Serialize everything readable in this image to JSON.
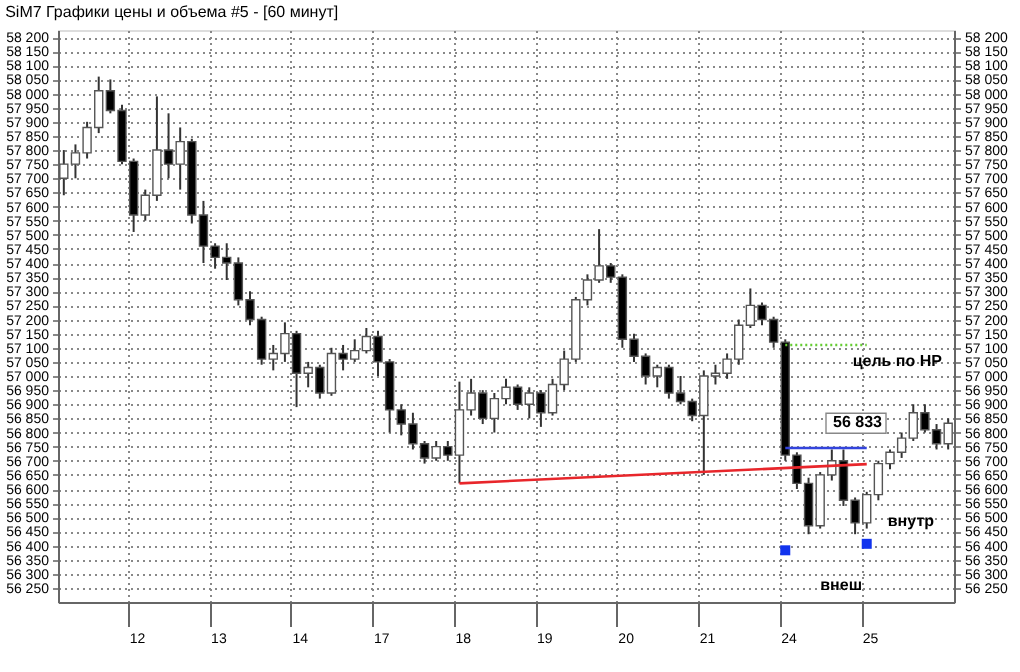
{
  "chart_data": {
    "type": "candlestick",
    "title": "SiM7 Графики цены и объема #5 - [60 минут]",
    "categories": [
      null,
      null,
      null,
      null,
      null,
      null,
      "12",
      null,
      null,
      null,
      null,
      null,
      null,
      "13",
      null,
      null,
      null,
      null,
      null,
      null,
      "14",
      null,
      null,
      null,
      null,
      null,
      null,
      "17",
      null,
      null,
      null,
      null,
      null,
      null,
      "18",
      null,
      null,
      null,
      null,
      null,
      null,
      "19",
      null,
      null,
      null,
      null,
      null,
      null,
      "20",
      null,
      null,
      null,
      null,
      null,
      null,
      "21",
      null,
      null,
      null,
      null,
      null,
      null,
      "24",
      null,
      null,
      null,
      null,
      null,
      null,
      "25",
      null,
      null,
      null,
      null,
      null,
      null,
      null
    ],
    "ohlc": [
      [
        57700,
        57800,
        57640,
        57750
      ],
      [
        57750,
        57820,
        57700,
        57790
      ],
      [
        57790,
        57900,
        57770,
        57880
      ],
      [
        57880,
        58060,
        57860,
        58010
      ],
      [
        58010,
        58050,
        57930,
        57940
      ],
      [
        57940,
        57960,
        57750,
        57760
      ],
      [
        57760,
        57770,
        57510,
        57570
      ],
      [
        57570,
        57660,
        57550,
        57640
      ],
      [
        57640,
        57990,
        57620,
        57800
      ],
      [
        57800,
        57930,
        57700,
        57750
      ],
      [
        57750,
        57880,
        57660,
        57830
      ],
      [
        57830,
        57840,
        57540,
        57570
      ],
      [
        57570,
        57620,
        57400,
        57460
      ],
      [
        57460,
        57470,
        57380,
        57420
      ],
      [
        57420,
        57470,
        57340,
        57400
      ],
      [
        57400,
        57420,
        57250,
        57270
      ],
      [
        57270,
        57300,
        57180,
        57200
      ],
      [
        57200,
        57210,
        57040,
        57060
      ],
      [
        57060,
        57110,
        57020,
        57080
      ],
      [
        57080,
        57190,
        57050,
        57150
      ],
      [
        57150,
        57160,
        56890,
        57010
      ],
      [
        57010,
        57050,
        56960,
        57030
      ],
      [
        57030,
        57040,
        56920,
        56940
      ],
      [
        56940,
        57100,
        56930,
        57080
      ],
      [
        57080,
        57110,
        57020,
        57060
      ],
      [
        57060,
        57130,
        57050,
        57090
      ],
      [
        57090,
        57170,
        57080,
        57140
      ],
      [
        57140,
        57160,
        57000,
        57050
      ],
      [
        57050,
        57060,
        56800,
        56880
      ],
      [
        56880,
        56900,
        56790,
        56830
      ],
      [
        56830,
        56870,
        56740,
        56760
      ],
      [
        56760,
        56770,
        56690,
        56710
      ],
      [
        56710,
        56770,
        56700,
        56750
      ],
      [
        56750,
        56770,
        56700,
        56720
      ],
      [
        56720,
        56980,
        56620,
        56880
      ],
      [
        56880,
        56990,
        56860,
        56940
      ],
      [
        56940,
        56950,
        56830,
        56850
      ],
      [
        56850,
        56940,
        56800,
        56920
      ],
      [
        56920,
        56990,
        56900,
        56960
      ],
      [
        56960,
        56970,
        56880,
        56900
      ],
      [
        56900,
        56960,
        56850,
        56940
      ],
      [
        56940,
        56950,
        56820,
        56870
      ],
      [
        56870,
        56990,
        56860,
        56970
      ],
      [
        56970,
        57090,
        56950,
        57060
      ],
      [
        57060,
        57280,
        57050,
        57270
      ],
      [
        57270,
        57360,
        57250,
        57340
      ],
      [
        57340,
        57520,
        57330,
        57390
      ],
      [
        57390,
        57400,
        57330,
        57350
      ],
      [
        57350,
        57360,
        57100,
        57130
      ],
      [
        57130,
        57150,
        57050,
        57070
      ],
      [
        57070,
        57080,
        56970,
        57000
      ],
      [
        57000,
        57040,
        56960,
        57030
      ],
      [
        57030,
        57040,
        56920,
        56940
      ],
      [
        56940,
        57000,
        56900,
        56910
      ],
      [
        56910,
        56920,
        56840,
        56860
      ],
      [
        56860,
        57020,
        56650,
        57000
      ],
      [
        57000,
        57040,
        56970,
        57010
      ],
      [
        57010,
        57080,
        56990,
        57060
      ],
      [
        57060,
        57200,
        57040,
        57180
      ],
      [
        57180,
        57310,
        57170,
        57250
      ],
      [
        57250,
        57260,
        57180,
        57200
      ],
      [
        57200,
        57210,
        57100,
        57120
      ],
      [
        57120,
        57130,
        56700,
        56720
      ],
      [
        56720,
        56730,
        56600,
        56620
      ],
      [
        56620,
        56640,
        56440,
        56470
      ],
      [
        56470,
        56660,
        56460,
        56650
      ],
      [
        56650,
        56740,
        56630,
        56700
      ],
      [
        56700,
        56740,
        56540,
        56560
      ],
      [
        56560,
        56570,
        56440,
        56480
      ],
      [
        56480,
        56590,
        56460,
        56580
      ],
      [
        56580,
        56700,
        56560,
        56690
      ],
      [
        56690,
        56740,
        56670,
        56730
      ],
      [
        56730,
        56800,
        56710,
        56780
      ],
      [
        56780,
        56900,
        56770,
        56870
      ],
      [
        56870,
        56900,
        56800,
        56810
      ],
      [
        56810,
        56830,
        56740,
        56760
      ],
      [
        56760,
        56850,
        56740,
        56833
      ]
    ],
    "series": [
      {
        "type": "line",
        "x": [
          "18",
          "25"
        ],
        "values": [
          56620,
          56688
        ],
        "color": "#e8262b",
        "line_style": "solid"
      },
      {
        "type": "line",
        "x": [
          "24",
          "25"
        ],
        "values": [
          57110,
          57110
        ],
        "color": "#66cc33",
        "line_style": "dotted"
      },
      {
        "type": "line",
        "x": [
          "24",
          "25"
        ],
        "values": [
          56745,
          56745
        ],
        "color": "#3344dd",
        "line_style": "solid"
      },
      {
        "type": "scatter",
        "x": [
          "24",
          "25"
        ],
        "values": [
          56383,
          56406
        ],
        "color": "#1133ee",
        "marker": "square"
      }
    ],
    "annotations": [
      "цель по НР",
      "внутр",
      "внеш",
      {
        "text": "56 833",
        "y": 56833
      }
    ],
    "ylim": [
      56200,
      58225
    ],
    "yticks": [
      {
        "value": 56250,
        "label": "56 250"
      },
      {
        "value": 56300,
        "label": "56 300"
      },
      {
        "value": 56350,
        "label": "56 350"
      },
      {
        "value": 56400,
        "label": "56 400"
      },
      {
        "value": 56450,
        "label": "56 450"
      },
      {
        "value": 56500,
        "label": "56 500"
      },
      {
        "value": 56550,
        "label": "56 550"
      },
      {
        "value": 56600,
        "label": "56 600"
      },
      {
        "value": 56650,
        "label": "56 650"
      },
      {
        "value": 56700,
        "label": "56 700"
      },
      {
        "value": 56750,
        "label": "56 750"
      },
      {
        "value": 56800,
        "label": "56 800"
      },
      {
        "value": 56850,
        "label": "56 850"
      },
      {
        "value": 56900,
        "label": "56 900"
      },
      {
        "value": 56950,
        "label": "56 950"
      },
      {
        "value": 57000,
        "label": "57 000"
      },
      {
        "value": 57050,
        "label": "57 050"
      },
      {
        "value": 57100,
        "label": "57 100"
      },
      {
        "value": 57150,
        "label": "57 150"
      },
      {
        "value": 57200,
        "label": "57 200"
      },
      {
        "value": 57250,
        "label": "57 250"
      },
      {
        "value": 57300,
        "label": "57 300"
      },
      {
        "value": 57350,
        "label": "57 350"
      },
      {
        "value": 57400,
        "label": "57 400"
      },
      {
        "value": 57450,
        "label": "57 450"
      },
      {
        "value": 57500,
        "label": "57 500"
      },
      {
        "value": 57550,
        "label": "57 550"
      },
      {
        "value": 57600,
        "label": "57 600"
      },
      {
        "value": 57650,
        "label": "57 650"
      },
      {
        "value": 57700,
        "label": "57 700"
      },
      {
        "value": 57750,
        "label": "57 750"
      },
      {
        "value": 57800,
        "label": "57 800"
      },
      {
        "value": 57850,
        "label": "57 850"
      },
      {
        "value": 57900,
        "label": "57 900"
      },
      {
        "value": 57950,
        "label": "57 950"
      },
      {
        "value": 58000,
        "label": "58 000"
      },
      {
        "value": 58050,
        "label": "58 050"
      },
      {
        "value": 58100,
        "label": "58 100"
      },
      {
        "value": 58150,
        "label": "58 150"
      },
      {
        "value": 58200,
        "label": "58 200"
      }
    ],
    "y2lim": [
      56200,
      58225
    ],
    "y2ticks": [
      {
        "value": 56250,
        "label": "56 250"
      },
      {
        "value": 56300,
        "label": "56 300"
      },
      {
        "value": 56350,
        "label": "56 350"
      },
      {
        "value": 56400,
        "label": "56 400"
      },
      {
        "value": 56450,
        "label": "56 450"
      },
      {
        "value": 56500,
        "label": "56 500"
      },
      {
        "value": 56550,
        "label": "56 550"
      },
      {
        "value": 56600,
        "label": "56 600"
      },
      {
        "value": 56650,
        "label": "56 650"
      },
      {
        "value": 56700,
        "label": "56 700"
      },
      {
        "value": 56750,
        "label": "56 750"
      },
      {
        "value": 56800,
        "label": "56 800"
      },
      {
        "value": 56850,
        "label": "56 850"
      },
      {
        "value": 56900,
        "label": "56 900"
      },
      {
        "value": 56950,
        "label": "56 950"
      },
      {
        "value": 57000,
        "label": "57 000"
      },
      {
        "value": 57050,
        "label": "57 050"
      },
      {
        "value": 57100,
        "label": "57 100"
      },
      {
        "value": 57150,
        "label": "57 150"
      },
      {
        "value": 57200,
        "label": "57 200"
      },
      {
        "value": 57250,
        "label": "57 250"
      },
      {
        "value": 57300,
        "label": "57 300"
      },
      {
        "value": 57350,
        "label": "57 350"
      },
      {
        "value": 57400,
        "label": "57 400"
      },
      {
        "value": 57450,
        "label": "57 450"
      },
      {
        "value": 57500,
        "label": "57 500"
      },
      {
        "value": 57550,
        "label": "57 550"
      },
      {
        "value": 57600,
        "label": "57 600"
      },
      {
        "value": 57650,
        "label": "57 650"
      },
      {
        "value": 57700,
        "label": "57 700"
      },
      {
        "value": 57750,
        "label": "57 750"
      },
      {
        "value": 57800,
        "label": "57 800"
      },
      {
        "value": 57850,
        "label": "57 850"
      },
      {
        "value": 57900,
        "label": "57 900"
      },
      {
        "value": 57950,
        "label": "57 950"
      },
      {
        "value": 58000,
        "label": "58 000"
      },
      {
        "value": 58050,
        "label": "58 050"
      },
      {
        "value": 58100,
        "label": "58 100"
      },
      {
        "value": 58150,
        "label": "58 150"
      },
      {
        "value": 58200,
        "label": "58 200"
      }
    ],
    "grid": true
  }
}
